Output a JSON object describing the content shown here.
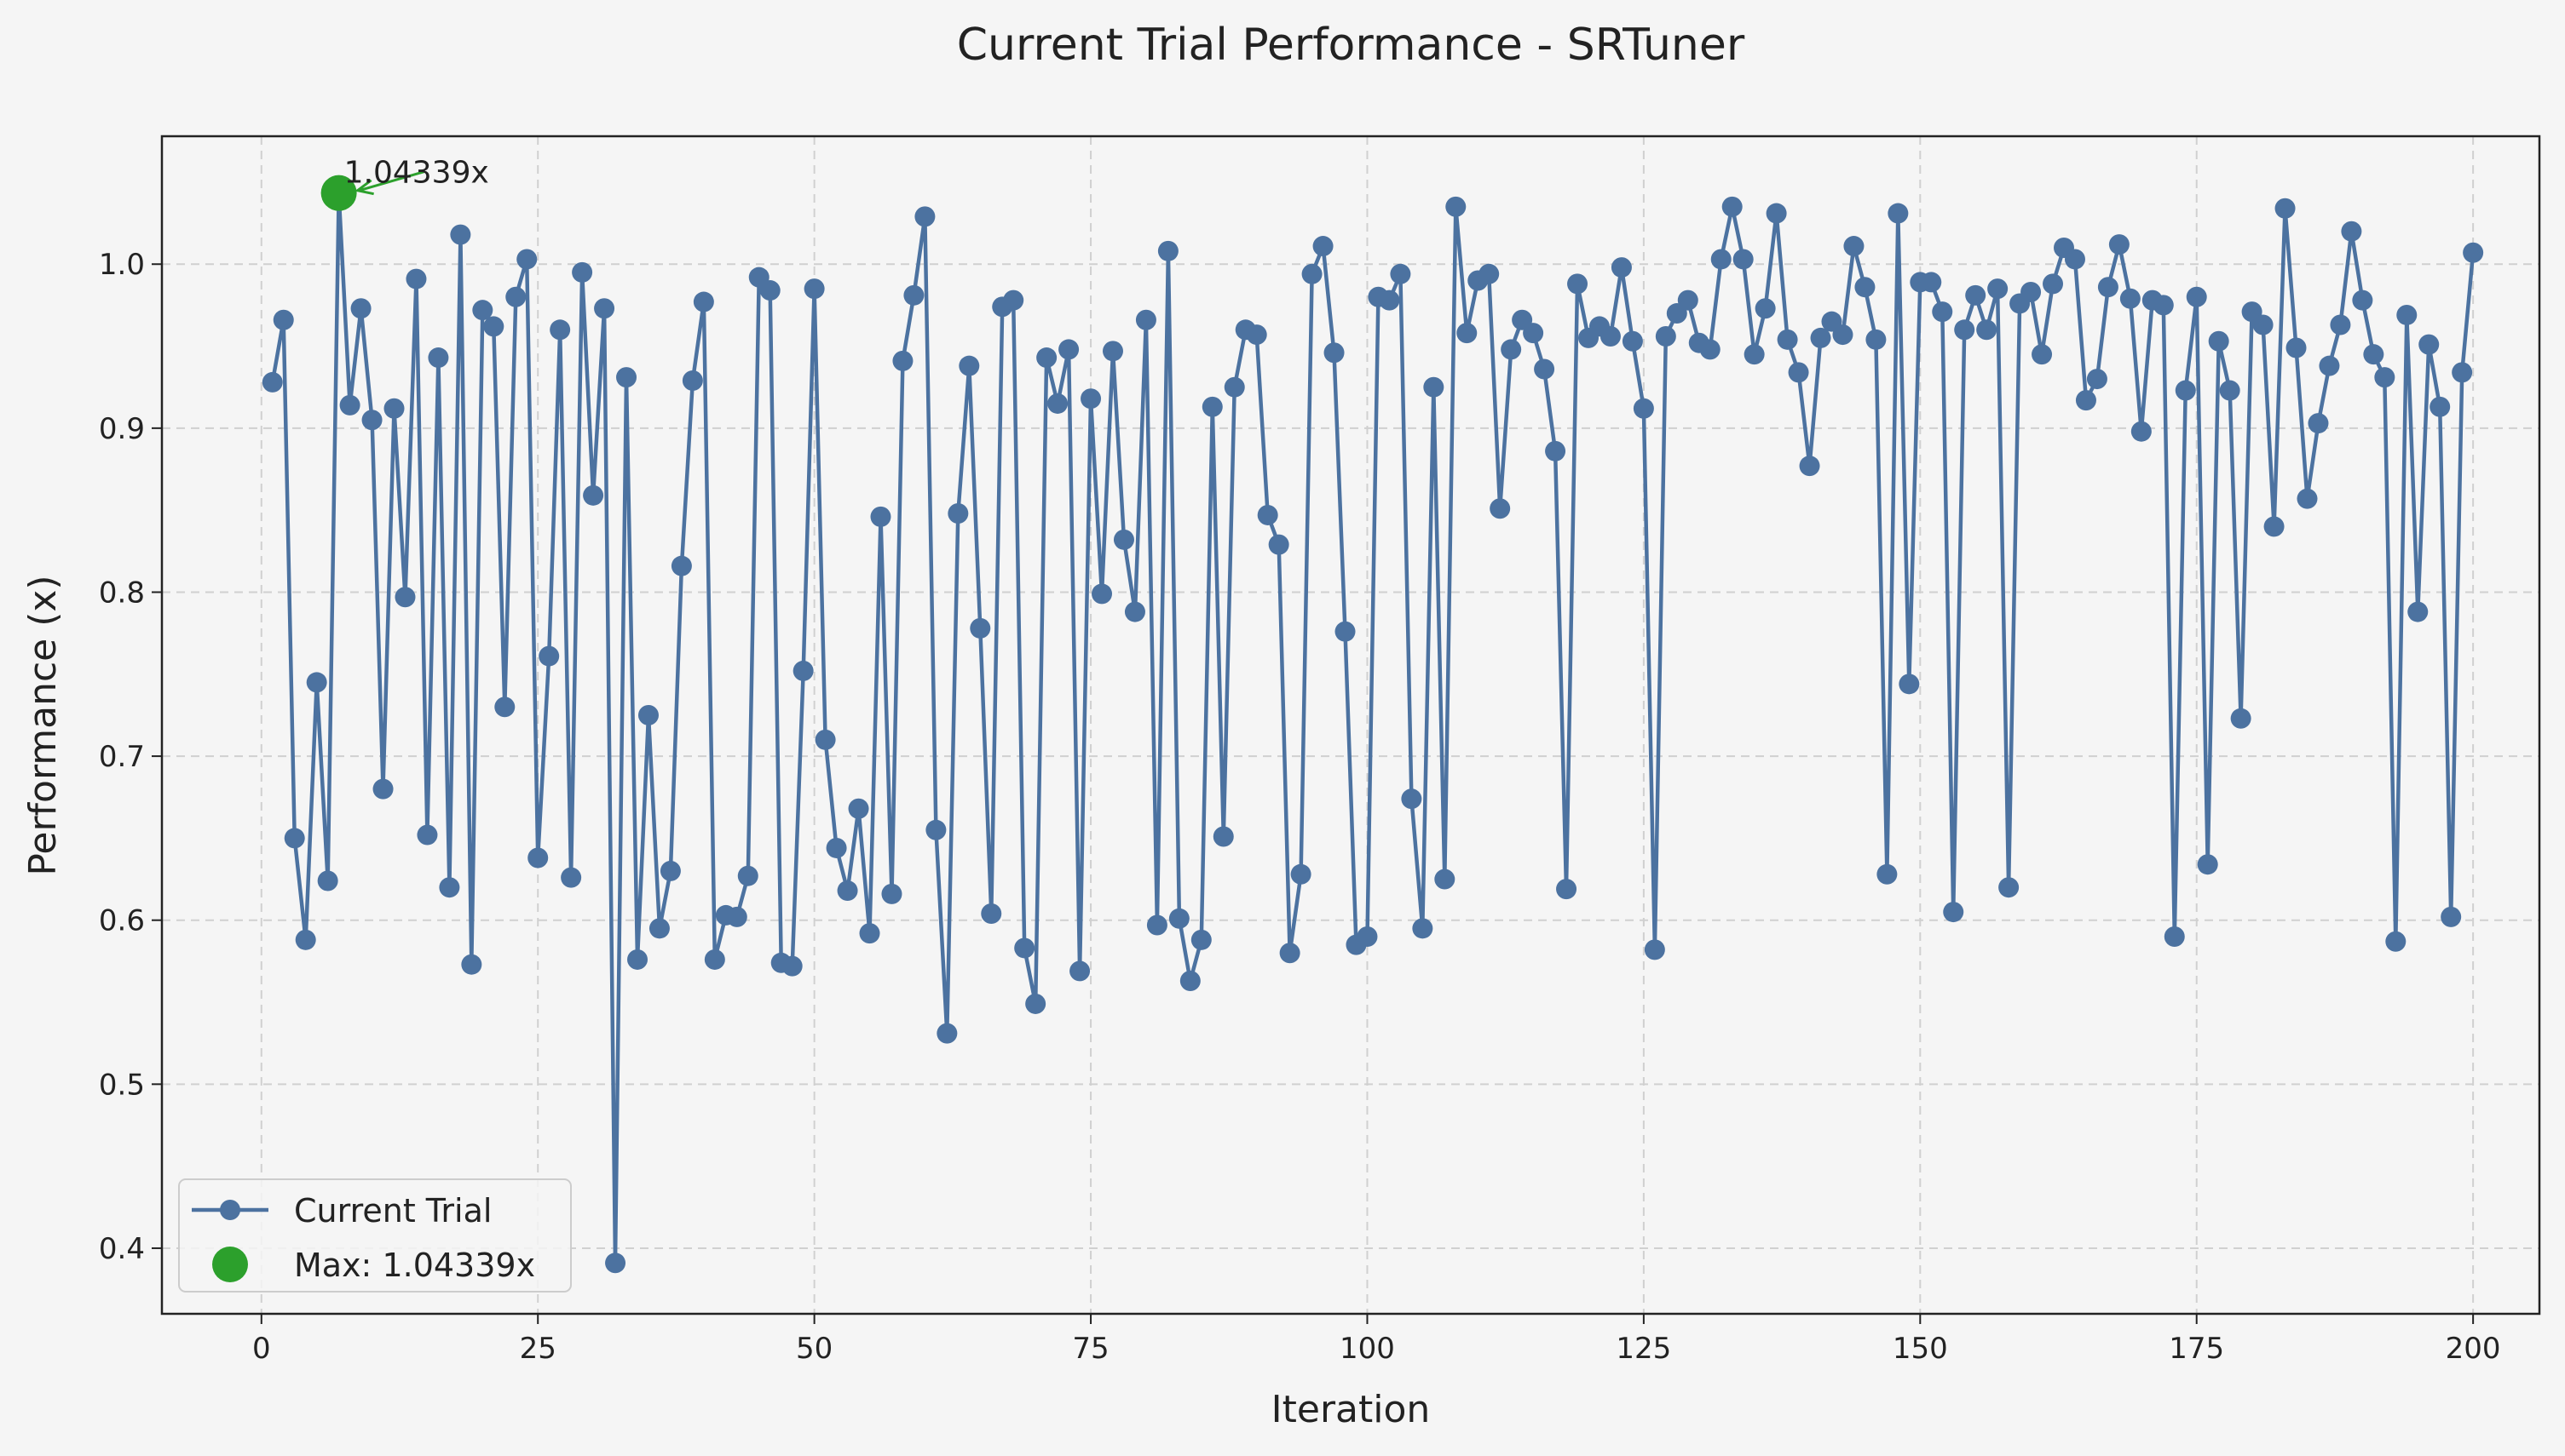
{
  "chart_data": {
    "type": "line",
    "title": "Current Trial Performance - SRTuner",
    "xlabel": "Iteration",
    "ylabel": "Performance (x)",
    "xlim": [
      -9,
      206
    ],
    "ylim": [
      0.36,
      1.078
    ],
    "xticks": [
      0,
      25,
      50,
      75,
      100,
      125,
      150,
      175,
      200
    ],
    "yticks": [
      0.4,
      0.5,
      0.6,
      0.7,
      0.8,
      0.9,
      1.0
    ],
    "ytick_labels": [
      "0.4",
      "0.5",
      "0.6",
      "0.7",
      "0.8",
      "0.9",
      "1.0"
    ],
    "grid": true,
    "legend_position": "lower-left",
    "colors": {
      "series": "#4c72a0",
      "max": "#2ca02c",
      "background": "#f5f5f5"
    },
    "series": [
      {
        "name": "Current Trial",
        "x": [
          1,
          2,
          3,
          4,
          5,
          6,
          7,
          8,
          9,
          10,
          11,
          12,
          13,
          14,
          15,
          16,
          17,
          18,
          19,
          20,
          21,
          22,
          23,
          24,
          25,
          26,
          27,
          28,
          29,
          30,
          31,
          32,
          33,
          34,
          35,
          36,
          37,
          38,
          39,
          40,
          41,
          42,
          43,
          44,
          45,
          46,
          47,
          48,
          49,
          50,
          51,
          52,
          53,
          54,
          55,
          56,
          57,
          58,
          59,
          60,
          61,
          62,
          63,
          64,
          65,
          66,
          67,
          68,
          69,
          70,
          71,
          72,
          73,
          74,
          75,
          76,
          77,
          78,
          79,
          80,
          81,
          82,
          83,
          84,
          85,
          86,
          87,
          88,
          89,
          90,
          91,
          92,
          93,
          94,
          95,
          96,
          97,
          98,
          99,
          100,
          101,
          102,
          103,
          104,
          105,
          106,
          107,
          108,
          109,
          110,
          111,
          112,
          113,
          114,
          115,
          116,
          117,
          118,
          119,
          120,
          121,
          122,
          123,
          124,
          125,
          126,
          127,
          128,
          129,
          130,
          131,
          132,
          133,
          134,
          135,
          136,
          137,
          138,
          139,
          140,
          141,
          142,
          143,
          144,
          145,
          146,
          147,
          148,
          149,
          150,
          151,
          152,
          153,
          154,
          155,
          156,
          157,
          158,
          159,
          160,
          161,
          162,
          163,
          164,
          165,
          166,
          167,
          168,
          169,
          170,
          171,
          172,
          173,
          174,
          175,
          176,
          177,
          178,
          179,
          180,
          181,
          182,
          183,
          184,
          185,
          186,
          187,
          188,
          189,
          190,
          191,
          192,
          193,
          194,
          195,
          196,
          197,
          198,
          199,
          200
        ],
        "values": [
          0.928,
          0.966,
          0.65,
          0.588,
          0.745,
          0.624,
          1.043,
          0.914,
          0.973,
          0.905,
          0.68,
          0.912,
          0.797,
          0.991,
          0.652,
          0.943,
          0.62,
          1.018,
          0.573,
          0.972,
          0.962,
          0.73,
          0.98,
          1.003,
          0.638,
          0.761,
          0.96,
          0.626,
          0.995,
          0.859,
          0.973,
          0.391,
          0.931,
          0.576,
          0.725,
          0.595,
          0.63,
          0.816,
          0.929,
          0.977,
          0.576,
          0.603,
          0.602,
          0.627,
          0.992,
          0.984,
          0.574,
          0.572,
          0.752,
          0.985,
          0.71,
          0.644,
          0.618,
          0.668,
          0.592,
          0.846,
          0.616,
          0.941,
          0.981,
          1.029,
          0.655,
          0.531,
          0.848,
          0.938,
          0.778,
          0.604,
          0.974,
          0.978,
          0.583,
          0.549,
          0.943,
          0.915,
          0.948,
          0.569,
          0.918,
          0.799,
          0.947,
          0.832,
          0.788,
          0.966,
          0.597,
          1.008,
          0.601,
          0.563,
          0.588,
          0.913,
          0.651,
          0.925,
          0.96,
          0.957,
          0.847,
          0.829,
          0.58,
          0.628,
          0.994,
          1.011,
          0.946,
          0.776,
          0.585,
          0.59,
          0.98,
          0.978,
          0.994,
          0.674,
          0.595,
          0.925,
          0.625,
          1.035,
          0.958,
          0.99,
          0.994,
          0.851,
          0.948,
          0.966,
          0.958,
          0.936,
          0.886,
          0.619,
          0.988,
          0.955,
          0.962,
          0.956,
          0.998,
          0.953,
          0.912,
          0.582,
          0.956,
          0.97,
          0.978,
          0.952,
          0.948,
          1.003,
          1.035,
          1.003,
          0.945,
          0.973,
          1.031,
          0.954,
          0.934,
          0.877,
          0.955,
          0.965,
          0.957,
          1.011,
          0.986,
          0.954,
          0.628,
          1.031,
          0.744,
          0.989,
          0.989,
          0.971,
          0.605,
          0.96,
          0.981,
          0.96,
          0.985,
          0.62,
          0.976,
          0.983,
          0.945,
          0.988,
          1.01,
          1.003,
          0.917,
          0.93,
          0.986,
          1.012,
          0.979,
          0.898,
          0.978,
          0.975,
          0.59,
          0.923,
          0.98,
          0.634,
          0.953,
          0.923,
          0.723,
          0.971,
          0.963,
          0.84,
          1.034,
          0.949,
          0.857,
          0.903,
          0.938,
          0.963,
          1.02,
          0.978,
          0.945,
          0.931,
          0.587,
          0.969,
          0.788,
          0.951,
          0.913,
          0.602,
          0.934,
          1.007
        ]
      }
    ],
    "max_point": {
      "x": 7,
      "value": 1.04339,
      "legend_label": "Max: 1.04339x",
      "annotation": "1.04339x"
    }
  }
}
